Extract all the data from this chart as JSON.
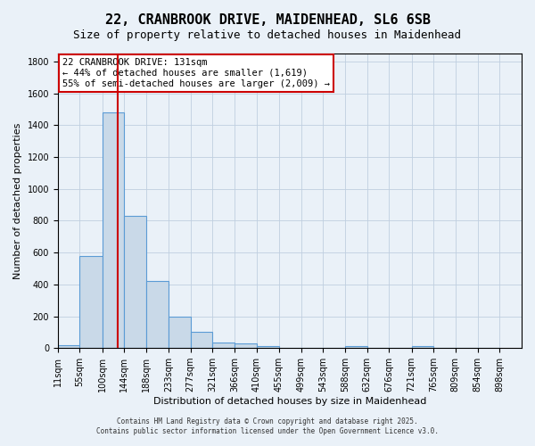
{
  "title_line1": "22, CRANBROOK DRIVE, MAIDENHEAD, SL6 6SB",
  "title_line2": "Size of property relative to detached houses in Maidenhead",
  "xlabel": "Distribution of detached houses by size in Maidenhead",
  "ylabel": "Number of detached properties",
  "bin_labels": [
    "11sqm",
    "55sqm",
    "100sqm",
    "144sqm",
    "188sqm",
    "233sqm",
    "277sqm",
    "321sqm",
    "366sqm",
    "410sqm",
    "455sqm",
    "499sqm",
    "543sqm",
    "588sqm",
    "632sqm",
    "676sqm",
    "721sqm",
    "765sqm",
    "809sqm",
    "854sqm",
    "898sqm"
  ],
  "bin_edges": [
    11,
    55,
    100,
    144,
    188,
    233,
    277,
    321,
    366,
    410,
    455,
    499,
    543,
    588,
    632,
    676,
    721,
    765,
    809,
    854,
    898
  ],
  "bar_heights": [
    20,
    580,
    1480,
    830,
    420,
    200,
    100,
    35,
    30,
    15,
    0,
    0,
    0,
    15,
    0,
    0,
    15,
    0,
    0,
    0
  ],
  "bar_color": "#c9d9e8",
  "bar_edge_color": "#5b9bd5",
  "bar_edge_width": 0.8,
  "grid_color": "#c0cfe0",
  "background_color": "#eaf1f8",
  "red_line_x": 131,
  "annotation_text": "22 CRANBROOK DRIVE: 131sqm\n← 44% of detached houses are smaller (1,619)\n55% of semi-detached houses are larger (2,009) →",
  "annotation_box_color": "#ffffff",
  "annotation_border_color": "#cc0000",
  "ylim": [
    0,
    1850
  ],
  "yticks": [
    0,
    200,
    400,
    600,
    800,
    1000,
    1200,
    1400,
    1600,
    1800
  ],
  "footer_line1": "Contains HM Land Registry data © Crown copyright and database right 2025.",
  "footer_line2": "Contains public sector information licensed under the Open Government Licence v3.0.",
  "title_fontsize": 11,
  "subtitle_fontsize": 9,
  "axis_label_fontsize": 8,
  "tick_fontsize": 7,
  "annotation_fontsize": 7.5
}
